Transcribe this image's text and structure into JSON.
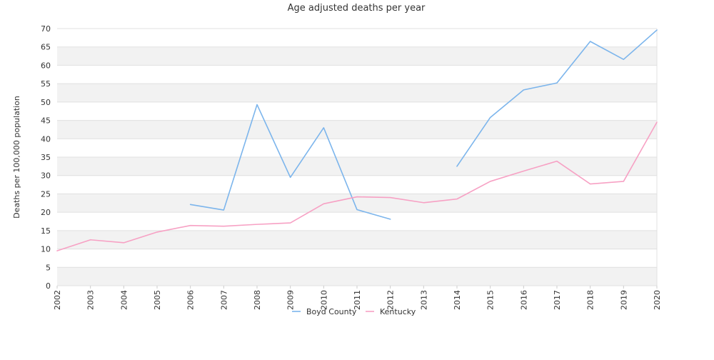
{
  "chart_data": {
    "type": "line",
    "title": "Age adjusted deaths per year",
    "xlabel": "",
    "ylabel": "Deaths per 100,000 population",
    "categories": [
      "2002",
      "2003",
      "2004",
      "2005",
      "2006",
      "2007",
      "2008",
      "2009",
      "2010",
      "2011",
      "2012",
      "2013",
      "2014",
      "2015",
      "2016",
      "2017",
      "2018",
      "2019",
      "2020"
    ],
    "ylim": [
      0,
      70
    ],
    "yticks": [
      0,
      5,
      10,
      15,
      20,
      25,
      30,
      35,
      40,
      45,
      50,
      55,
      60,
      65,
      70
    ],
    "grid": "horizontal alternating bands",
    "legend_position": "bottom",
    "series": [
      {
        "name": "Boyd County",
        "color": "#7cb5ec",
        "values": [
          null,
          null,
          null,
          null,
          22.1,
          20.6,
          49.3,
          29.5,
          43.0,
          20.7,
          18.1,
          null,
          32.5,
          45.8,
          53.3,
          55.2,
          66.5,
          61.6,
          69.6
        ]
      },
      {
        "name": "Kentucky",
        "color": "#f7a1c4",
        "values": [
          9.5,
          12.5,
          11.7,
          14.6,
          16.4,
          16.2,
          16.7,
          17.1,
          22.3,
          24.2,
          24.0,
          22.6,
          23.6,
          28.4,
          31.2,
          33.9,
          27.7,
          28.4,
          44.5
        ]
      }
    ]
  }
}
